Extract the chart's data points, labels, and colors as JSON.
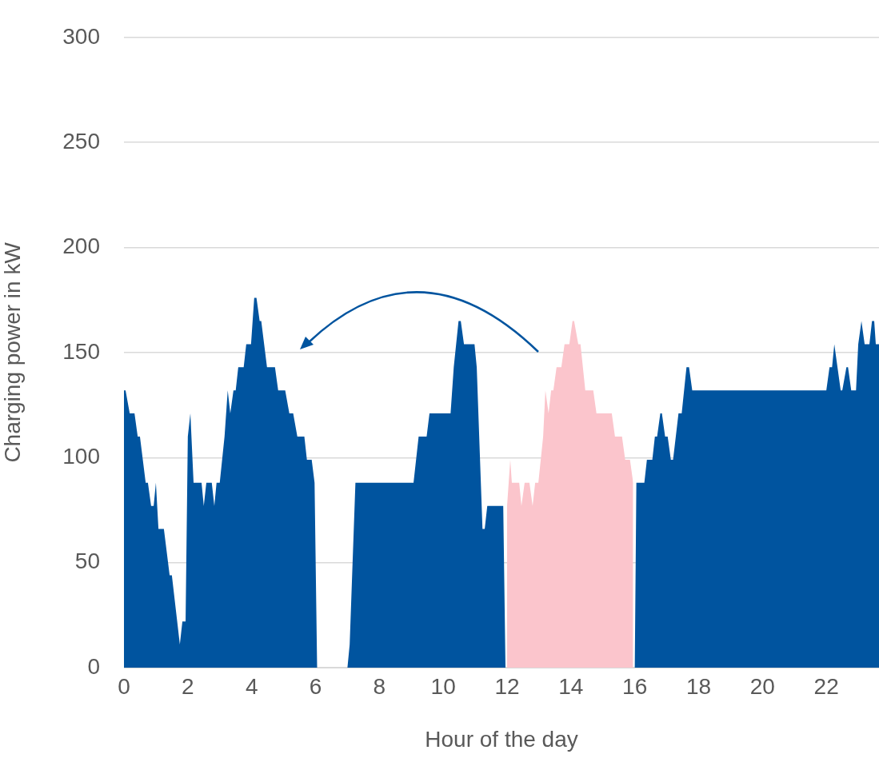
{
  "chart_data": {
    "type": "area",
    "xlabel": "Hour of the day",
    "ylabel": "Charging power in kW",
    "xlim": [
      0,
      23.65
    ],
    "xticks": [
      0,
      2,
      4,
      6,
      8,
      10,
      12,
      14,
      16,
      18,
      20,
      22
    ],
    "ylim": [
      0,
      300
    ],
    "yticks": [
      0,
      50,
      100,
      150,
      200,
      250,
      300
    ],
    "grid": "y",
    "legend": false,
    "series": [
      {
        "color": "#00549f",
        "x": [
          0,
          0.05,
          0.18,
          0.33,
          0.43,
          0.5,
          0.68,
          0.75,
          0.85,
          0.93,
          1.0,
          1.08,
          1.25,
          1.43,
          1.5,
          1.75,
          1.83,
          1.93,
          2.0,
          2.08,
          2.18,
          2.43,
          2.5,
          2.58,
          2.75,
          2.83,
          2.9,
          3.0,
          3.15,
          3.25,
          3.33,
          3.43,
          3.5,
          3.58,
          3.75,
          3.83,
          3.98,
          4.08,
          4.15,
          4.25,
          4.3,
          4.48,
          4.73,
          4.83,
          5.05,
          5.18,
          5.3,
          5.43,
          5.65,
          5.73,
          5.88,
          5.97,
          6.05,
          7.0,
          7.07,
          7.25,
          9.07,
          9.23,
          9.48,
          9.57,
          10.23,
          10.33,
          10.48,
          10.55,
          10.65,
          10.98,
          11.05,
          11.23,
          11.3,
          11.38,
          11.88,
          11.95,
          16.0,
          16.05,
          16.3,
          16.38,
          16.55,
          16.63,
          16.7,
          16.8,
          16.85,
          16.95,
          17.03,
          17.13,
          17.2,
          17.37,
          17.47,
          17.62,
          17.7,
          17.8,
          22.0,
          22.1,
          22.18,
          22.25,
          22.45,
          22.5,
          22.63,
          22.68,
          22.78,
          22.93,
          23.0,
          23.1,
          23.2,
          23.35,
          23.43,
          23.5,
          23.55,
          23.65
        ],
        "values": [
          132,
          132,
          121,
          121,
          110,
          110,
          88,
          88,
          77,
          77,
          88,
          66,
          66,
          44,
          44,
          11,
          22,
          22,
          110,
          121,
          88,
          88,
          77,
          88,
          88,
          77,
          88,
          88,
          110,
          132,
          121,
          132,
          132,
          143,
          143,
          154,
          154,
          176,
          176,
          165,
          165,
          143,
          143,
          132,
          132,
          121,
          121,
          110,
          110,
          99,
          99,
          88,
          0,
          0,
          11,
          88,
          88,
          110,
          110,
          121,
          121,
          143,
          165,
          165,
          154,
          154,
          143,
          66,
          66,
          77,
          77,
          0,
          0,
          88,
          88,
          99,
          99,
          110,
          110,
          121,
          121,
          110,
          110,
          99,
          99,
          121,
          121,
          143,
          143,
          132,
          132,
          143,
          143,
          154,
          132,
          132,
          143,
          143,
          132,
          132,
          154,
          165,
          154,
          154,
          165,
          165,
          154,
          154
        ]
      },
      {
        "color": "#fbc5cc",
        "x": [
          12.0,
          12.1,
          12.15,
          12.38,
          12.45,
          12.55,
          12.7,
          12.8,
          12.88,
          12.98,
          13.13,
          13.2,
          13.3,
          13.38,
          13.45,
          13.55,
          13.7,
          13.8,
          13.95,
          14.05,
          14.1,
          14.23,
          14.3,
          14.45,
          14.7,
          14.8,
          15.28,
          15.38,
          15.6,
          15.7,
          15.85,
          15.95
        ],
        "values": [
          77,
          99,
          88,
          88,
          77,
          88,
          88,
          77,
          88,
          88,
          110,
          132,
          121,
          132,
          132,
          143,
          143,
          154,
          154,
          165,
          165,
          154,
          154,
          132,
          132,
          121,
          121,
          110,
          110,
          99,
          99,
          88
        ]
      }
    ]
  }
}
